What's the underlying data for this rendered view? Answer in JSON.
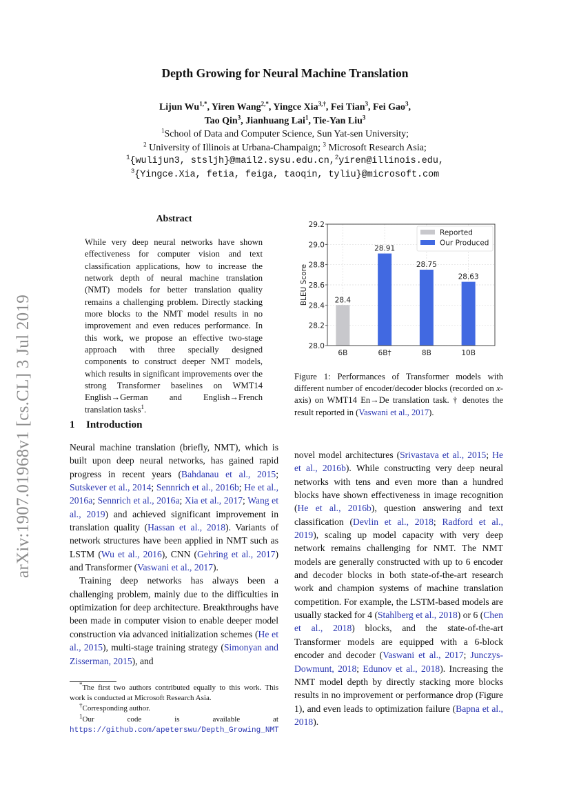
{
  "side_label": "arXiv:1907.01968v1  [cs.CL]  3 Jul 2019",
  "title": "Depth Growing for Neural Machine Translation",
  "authors_line1": [
    {
      "name": "Lijun Wu",
      "sup": "1,*"
    },
    {
      "name": ", Yiren Wang",
      "sup": "2,*"
    },
    {
      "name": ", Yingce Xia",
      "sup": "3,†"
    },
    {
      "name": ", Fei Tian",
      "sup": "3"
    },
    {
      "name": ", Fei Gao",
      "sup": "3"
    },
    {
      "name": ",",
      "sup": ""
    }
  ],
  "authors_line2": [
    {
      "name": "Tao Qin",
      "sup": "3"
    },
    {
      "name": ", Jianhuang Lai",
      "sup": "1"
    },
    {
      "name": ", Tie-Yan Liu",
      "sup": "3"
    }
  ],
  "affiliations": [
    {
      "sup": "1",
      "text": "School of Data and Computer Science, Sun Yat-sen University;"
    },
    {
      "sup": "2",
      "text": " University of Illinois at Urbana-Champaign; ",
      "sup2": "3",
      "text2": " Microsoft Research Asia;"
    }
  ],
  "emails": [
    {
      "sup": "1",
      "text": "{wulijun3, stsljh}@mail2.sysu.edu.cn,",
      "sup2": "2",
      "text2": "yiren@illinois.edu,"
    },
    {
      "sup": "3",
      "text": "{Yingce.Xia, fetia, feiga, taoqin, tyliu}@microsoft.com"
    }
  ],
  "abstract": {
    "heading": "Abstract",
    "text": "While very deep neural networks have shown effectiveness for computer vision and text classification applications, how to increase the network depth of neural machine translation (NMT) models for better translation quality remains a challenging problem. Directly stacking more blocks to the NMT model results in no improvement and even reduces performance. In this work, we propose an effective two-stage approach with three specially designed components to construct deeper NMT models, which results in significant improvements over the strong Transformer baselines on WMT14 English→German and English→French translation tasks",
    "footnote_mark": "1",
    "end": "."
  },
  "section": {
    "number": "1",
    "title": "Introduction"
  },
  "left_paragraphs": [
    [
      "Neural machine translation (briefly, NMT), which is built upon deep neural networks, has gained rapid progress in recent years (",
      {
        "c": "Bahdanau et al., 2015"
      },
      "; ",
      {
        "c": "Sutskever et al., 2014"
      },
      "; ",
      {
        "c": "Sennrich et al., 2016b"
      },
      "; ",
      {
        "c": "He et al., 2016a"
      },
      "; ",
      {
        "c": "Sennrich et al., 2016a"
      },
      "; ",
      {
        "c": "Xia et al., 2017"
      },
      "; ",
      {
        "c": "Wang et al., 2019"
      },
      ") and achieved significant improvement in translation quality (",
      {
        "c": "Hassan et al., 2018"
      },
      "). Variants of network structures have been applied in NMT such as LSTM (",
      {
        "c": "Wu et al., 2016"
      },
      "), CNN (",
      {
        "c": "Gehring et al., 2017"
      },
      ") and Transformer (",
      {
        "c": "Vaswani et al., 2017"
      },
      ")."
    ],
    [
      "Training deep networks has always been a challenging problem, mainly due to the difficulties in optimization for deep architecture. Breakthroughs have been made in computer vision to enable deeper model construction via advanced initialization schemes (",
      {
        "c": "He et al., 2015"
      },
      "), multi-stage training strategy (",
      {
        "c": "Simonyan and Zisserman, 2015"
      },
      "), and"
    ]
  ],
  "right_paragraphs": [
    [
      "novel model architectures (",
      {
        "c": "Srivastava et al., 2015"
      },
      "; ",
      {
        "c": "He et al., 2016b"
      },
      "). While constructing very deep neural networks with tens and even more than a hundred blocks have shown effectiveness in image recognition (",
      {
        "c": "He et al., 2016b"
      },
      "), question answering and text classification (",
      {
        "c": "Devlin et al., 2018"
      },
      "; ",
      {
        "c": "Radford et al., 2019"
      },
      "), scaling up model capacity with very deep network remains challenging for NMT. The NMT models are generally constructed with up to 6 encoder and decoder blocks in both state-of-the-art research work and champion systems of machine translation competition. For example, the LSTM-based models are usually stacked for 4 (",
      {
        "c": "Stahlberg et al., 2018"
      },
      ") or 6 (",
      {
        "c": "Chen et al., 2018"
      },
      ") blocks, and the state-of-the-art Transformer models are equipped with a 6-block encoder and decoder (",
      {
        "c": "Vaswani et al., 2017"
      },
      "; ",
      {
        "c": "Junczys-Dowmunt, 2018"
      },
      "; ",
      {
        "c": "Edunov et al., 2018"
      },
      "). Increasing the NMT model depth by directly stacking more blocks results in no improvement or performance drop (Figure 1), and even leads to optimization failure (",
      {
        "c": "Bapna et al., 2018"
      },
      ")."
    ]
  ],
  "figure_caption": [
    "Figure 1: Performances of Transformer models with different number of encoder/decoder blocks (recorded on ",
    {
      "i": "x"
    },
    "-axis) on WMT14 En→De translation task. † denotes the result reported in (",
    {
      "c": "Vaswani et al., 2017"
    },
    ")."
  ],
  "footnotes": [
    {
      "mark": "*",
      "text": "The first two authors contributed equally to this work. This work is conducted at Microsoft Research Asia."
    },
    {
      "mark": "†",
      "text": "Corresponding author."
    },
    {
      "mark": "1",
      "text": "Our code is available at ",
      "url": "https://github.com/apeterswu/Depth_Growing_NMT"
    }
  ],
  "chart_data": {
    "type": "bar",
    "categories": [
      "6B",
      "6B†",
      "8B",
      "10B"
    ],
    "series": [
      {
        "name": "Reported",
        "values": [
          28.4,
          null,
          null,
          null
        ],
        "color": "#c8c8cc"
      },
      {
        "name": "Our Produced",
        "values": [
          null,
          28.91,
          28.75,
          28.63
        ],
        "color": "#4169e1"
      }
    ],
    "data_labels": [
      "28.4",
      "28.91",
      "28.75",
      "28.63"
    ],
    "xlabel": "",
    "ylabel": "BLEU Score",
    "ylim": [
      28.0,
      29.2
    ],
    "yticks": [
      "28.0",
      "28.2",
      "28.4",
      "28.6",
      "28.8",
      "29.0",
      "29.2"
    ],
    "grid": true,
    "legend_position": "top-right"
  },
  "colors": {
    "citation": "#2a36b1",
    "side_label": "#8c8c8c"
  }
}
